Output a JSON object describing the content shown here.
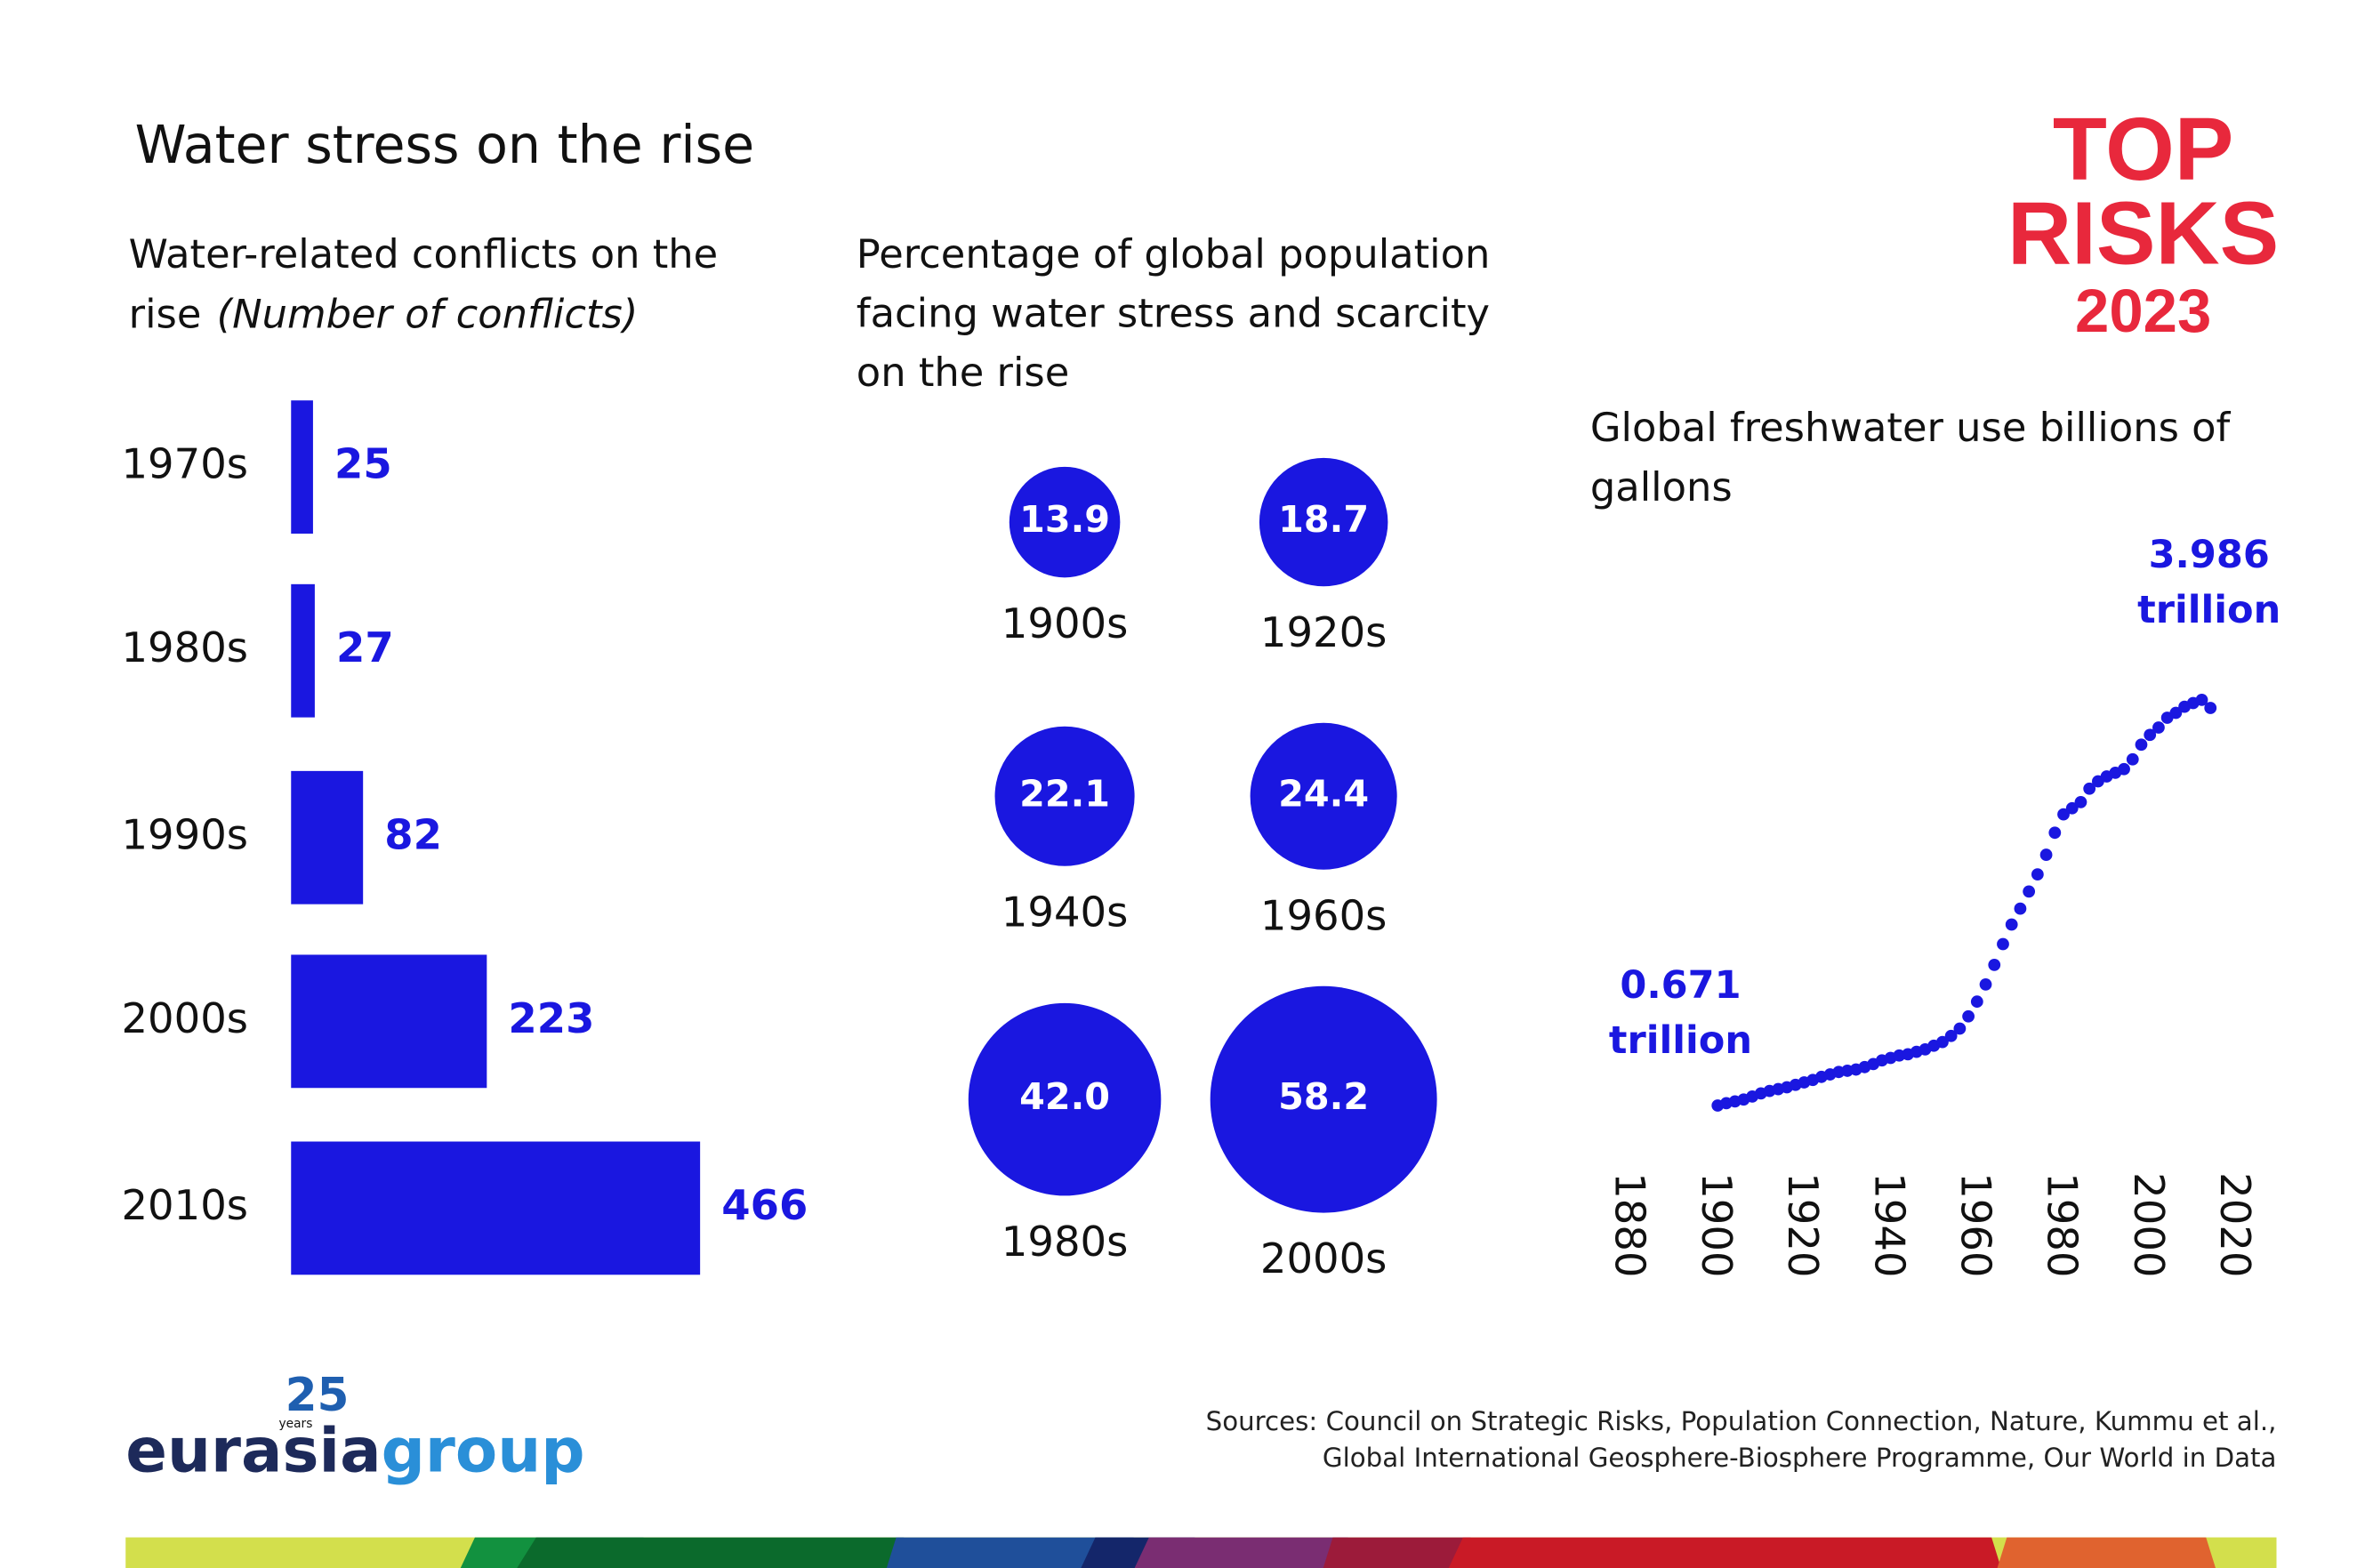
{
  "header": {
    "title": "Water stress on the rise"
  },
  "top_risks_logo": {
    "line1": "TOP",
    "line2": "RISKS",
    "line3": "2023"
  },
  "chart_data": [
    {
      "type": "bar",
      "orientation": "horizontal",
      "title": [
        "Water-related conflicts on the",
        "rise"
      ],
      "subtitle": "(Number of conflicts)",
      "categories": [
        "1970s",
        "1980s",
        "1990s",
        "2000s",
        "2010s"
      ],
      "values": [
        25,
        27,
        82,
        223,
        466
      ],
      "color": "#1a17e0",
      "xlim": [
        0,
        466
      ]
    },
    {
      "type": "bubble",
      "title": [
        "Percentage of global population",
        "facing water stress and scarcity",
        "on the rise"
      ],
      "categories": [
        "1900s",
        "1920s",
        "1940s",
        "1960s",
        "1980s",
        "2000s"
      ],
      "values": [
        13.9,
        18.7,
        22.1,
        24.4,
        42.0,
        58.2
      ],
      "value_labels": [
        "13.9",
        "18.7",
        "22.1",
        "24.4",
        "42.0",
        "58.2"
      ],
      "color": "#1a17e0"
    },
    {
      "type": "scatter",
      "title": [
        "Global freshwater use billions of",
        "gallons"
      ],
      "color": "#1a17e0",
      "x": [
        1901,
        1903,
        1905,
        1907,
        1909,
        1911,
        1913,
        1915,
        1917,
        1919,
        1921,
        1923,
        1925,
        1927,
        1929,
        1931,
        1933,
        1935,
        1937,
        1939,
        1941,
        1943,
        1945,
        1947,
        1949,
        1951,
        1953,
        1955,
        1957,
        1959,
        1961,
        1963,
        1965,
        1967,
        1969,
        1971,
        1973,
        1975,
        1977,
        1979,
        1981,
        1983,
        1985,
        1987,
        1989,
        1991,
        1993,
        1995,
        1997,
        1999,
        2001,
        2003,
        2005,
        2007,
        2009,
        2011,
        2013,
        2015
      ],
      "values": [
        671,
        690,
        705,
        720,
        745,
        770,
        790,
        805,
        820,
        840,
        860,
        880,
        905,
        925,
        945,
        955,
        965,
        985,
        1010,
        1040,
        1060,
        1080,
        1090,
        1110,
        1130,
        1160,
        1190,
        1240,
        1300,
        1400,
        1520,
        1660,
        1820,
        1990,
        2150,
        2280,
        2420,
        2560,
        2720,
        2900,
        3050,
        3100,
        3150,
        3260,
        3320,
        3360,
        3390,
        3420,
        3500,
        3620,
        3700,
        3760,
        3840,
        3880,
        3930,
        3960,
        3986,
        3920
      ],
      "xlim": [
        1880,
        2020
      ],
      "xticks": [
        1880,
        1900,
        1920,
        1940,
        1960,
        1980,
        2000,
        2020
      ],
      "ylim": [
        0,
        5000
      ],
      "annotations": [
        {
          "lines": [
            "0.671",
            "trillion"
          ]
        },
        {
          "lines": [
            "3.986",
            "trillion"
          ]
        }
      ]
    }
  ],
  "footer": {
    "logo_years_number": "25",
    "logo_years": "years",
    "logo_eurasia": "eurasia",
    "logo_group": "group",
    "sources": [
      "Sources: Council on Strategic Risks, Population Connection, Nature, Kummu et al.,",
      "Global International Geosphere-Biosphere Programme, Our World in Data"
    ]
  }
}
